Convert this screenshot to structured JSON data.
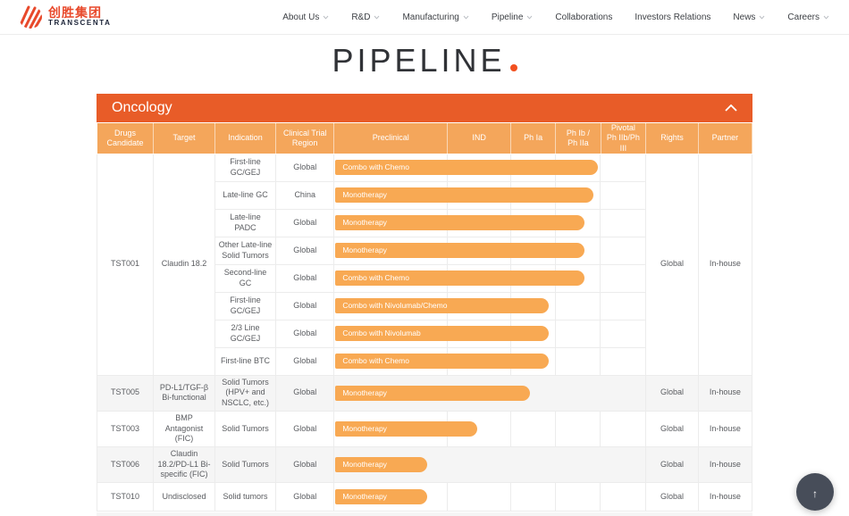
{
  "colors": {
    "accent_orange_red": "#E85C28",
    "table_header_orange": "#F4A65B",
    "bar_orange": "#F8A953",
    "brand_red": "#E8492B",
    "brand_navy": "#1B2337",
    "dot_red": "#F2501F",
    "stripe_gray": "#F5F5F5",
    "back_to_top_gray": "#474D59"
  },
  "header": {
    "logo": {
      "cn": "创胜集团",
      "en": "TRANSCENTA"
    },
    "nav": [
      {
        "label": "About Us",
        "dropdown": true
      },
      {
        "label": "R&D",
        "dropdown": true
      },
      {
        "label": "Manufacturing",
        "dropdown": true
      },
      {
        "label": "Pipeline",
        "dropdown": true
      },
      {
        "label": "Collaborations",
        "dropdown": false
      },
      {
        "label": "Investors Relations",
        "dropdown": false
      },
      {
        "label": "News",
        "dropdown": true
      },
      {
        "label": "Careers",
        "dropdown": true
      }
    ]
  },
  "page": {
    "title": "PIPELINE"
  },
  "section": {
    "title": "Oncology"
  },
  "table": {
    "columns": [
      "Drugs\nCandidate",
      "Target",
      "Indication",
      "Clinical Trial\nRegion",
      "Preclinical",
      "IND",
      "Ph Ia",
      "Ph Ib /\nPh IIa",
      "Pivotal\nPh IIb/Ph III",
      "Rights",
      "Partner"
    ],
    "phases": [
      "Preclinical",
      "IND",
      "Ph Ia",
      "Ph Ib / Ph IIa",
      "Pivotal Ph IIb/Ph III"
    ],
    "groups": [
      {
        "candidate": "TST001",
        "target": "Claudin 18.2",
        "rights": "Global",
        "partner": "In-house",
        "rows": [
          {
            "indication": "First-line GC/GEJ",
            "region": "Global",
            "therapy": "Combo with Chemo",
            "progress_pct": 84.5
          },
          {
            "indication": "Late-line GC",
            "region": "China",
            "therapy": "Monotherapy",
            "progress_pct": 83
          },
          {
            "indication": "Late-line PADC",
            "region": "Global",
            "therapy": "Monotherapy",
            "progress_pct": 80
          },
          {
            "indication": "Other Late-line Solid Tumors",
            "region": "Global",
            "therapy": "Monotherapy",
            "progress_pct": 80
          },
          {
            "indication": "Second-line GC",
            "region": "Global",
            "therapy": "Combo with Chemo",
            "progress_pct": 80
          },
          {
            "indication": "First-line GC/GEJ",
            "region": "Global",
            "therapy": "Combo with Nivolumab/Chemo",
            "progress_pct": 68.5
          },
          {
            "indication": "2/3 Line GC/GEJ",
            "region": "Global",
            "therapy": "Combo with Nivolumab",
            "progress_pct": 68.5
          },
          {
            "indication": "First-line BTC",
            "region": "Global",
            "therapy": "Combo with Chemo",
            "progress_pct": 68.5
          }
        ]
      },
      {
        "candidate": "TST005",
        "target": "PD-L1/TGF-β Bi-functional",
        "rights": "Global",
        "partner": "In-house",
        "rows": [
          {
            "indication": "Solid Tumors (HPV+ and NSCLC, etc.)",
            "region": "Global",
            "therapy": "Monotherapy",
            "progress_pct": 62.5
          }
        ]
      },
      {
        "candidate": "TST003",
        "target": "BMP Antagonist (FIC)",
        "rights": "Global",
        "partner": "In-house",
        "rows": [
          {
            "indication": "Solid Tumors",
            "region": "Global",
            "therapy": "Monotherapy",
            "progress_pct": 45.5
          }
        ]
      },
      {
        "candidate": "TST006",
        "target": "Claudin 18.2/PD-L1 Bi-specific (FIC)",
        "rights": "Global",
        "partner": "In-house",
        "rows": [
          {
            "indication": "Solid Tumors",
            "region": "Global",
            "therapy": "Monotherapy",
            "progress_pct": 29.5
          }
        ]
      },
      {
        "candidate": "TST010",
        "target": "Undisclosed",
        "rights": "Global",
        "partner": "In-house",
        "rows": [
          {
            "indication": "Solid tumors",
            "region": "Global",
            "therapy": "Monotherapy",
            "progress_pct": 29.5
          }
        ]
      }
    ]
  },
  "back_to_top": {
    "icon": "↑"
  }
}
